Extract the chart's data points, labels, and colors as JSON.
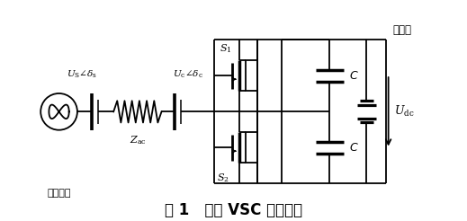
{
  "title": "图 1   单相 VSC 工作原理",
  "title_fontsize": 12,
  "bg_color": "#ffffff",
  "lc": "#000000",
  "label_Us": "$U_\\mathrm{S}\\angle\\delta_\\mathrm{s}$",
  "label_Uc": "$U_\\mathrm{c}\\angle\\delta_\\mathrm{c}$",
  "label_Zac": "$Z_\\mathrm{ac}$",
  "label_S1": "$S_1$",
  "label_S2": "$S_2$",
  "label_C": "C",
  "label_Udc": "$U_\\mathrm{dc}$",
  "label_dc": "直流端",
  "label_ac": "交流系统",
  "fig_width": 5.19,
  "fig_height": 2.46,
  "dpi": 100
}
